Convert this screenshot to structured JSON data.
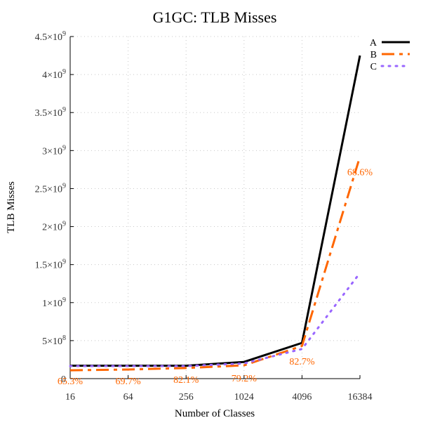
{
  "chart_data": {
    "type": "line",
    "title": "G1GC: TLB Misses",
    "xlabel": "Number of Classes",
    "ylabel": "TLB Misses",
    "categories": [
      "16",
      "64",
      "256",
      "1024",
      "4096",
      "16384"
    ],
    "ylim": [
      0,
      4500000000
    ],
    "y_ticks": [
      {
        "value": 0,
        "base": "0",
        "exp": ""
      },
      {
        "value": 500000000,
        "base": "5×10",
        "exp": "8"
      },
      {
        "value": 1000000000,
        "base": "1×10",
        "exp": "9"
      },
      {
        "value": 1500000000,
        "base": "1.5×10",
        "exp": "9"
      },
      {
        "value": 2000000000,
        "base": "2×10",
        "exp": "9"
      },
      {
        "value": 2500000000,
        "base": "2.5×10",
        "exp": "9"
      },
      {
        "value": 3000000000,
        "base": "3×10",
        "exp": "9"
      },
      {
        "value": 3500000000,
        "base": "3.5×10",
        "exp": "9"
      },
      {
        "value": 4000000000,
        "base": "4×10",
        "exp": "9"
      },
      {
        "value": 4500000000,
        "base": "4.5×10",
        "exp": "9"
      }
    ],
    "grid": true,
    "legend_position": "top-right",
    "series": [
      {
        "name": "A",
        "color": "#000000",
        "dash": "solid",
        "values": [
          170000000,
          170000000,
          170000000,
          220000000,
          470000000,
          4250000000
        ]
      },
      {
        "name": "B",
        "color": "#ff6600",
        "dash": "dash-dot",
        "values": [
          110000000,
          120000000,
          140000000,
          175000000,
          430000000,
          2920000000
        ]
      },
      {
        "name": "C",
        "color": "#9966ff",
        "dash": "dotted",
        "values": [
          165000000,
          165000000,
          165000000,
          200000000,
          390000000,
          1390000000
        ]
      }
    ],
    "annotations": [
      {
        "text": "65.3%",
        "category_index": 0,
        "y": -30000000,
        "color": "#ff6600"
      },
      {
        "text": "69.7%",
        "category_index": 1,
        "y": -30000000,
        "color": "#ff6600"
      },
      {
        "text": "82.1%",
        "category_index": 2,
        "y": -10000000,
        "color": "#ff6600"
      },
      {
        "text": "79.2%",
        "category_index": 3,
        "y": 10000000,
        "color": "#ff6600"
      },
      {
        "text": "82.7%",
        "category_index": 4,
        "y": 230000000,
        "color": "#ff6600"
      },
      {
        "text": "68.6%",
        "category_index": 5,
        "y": 2720000000,
        "color": "#ff6600"
      }
    ]
  }
}
